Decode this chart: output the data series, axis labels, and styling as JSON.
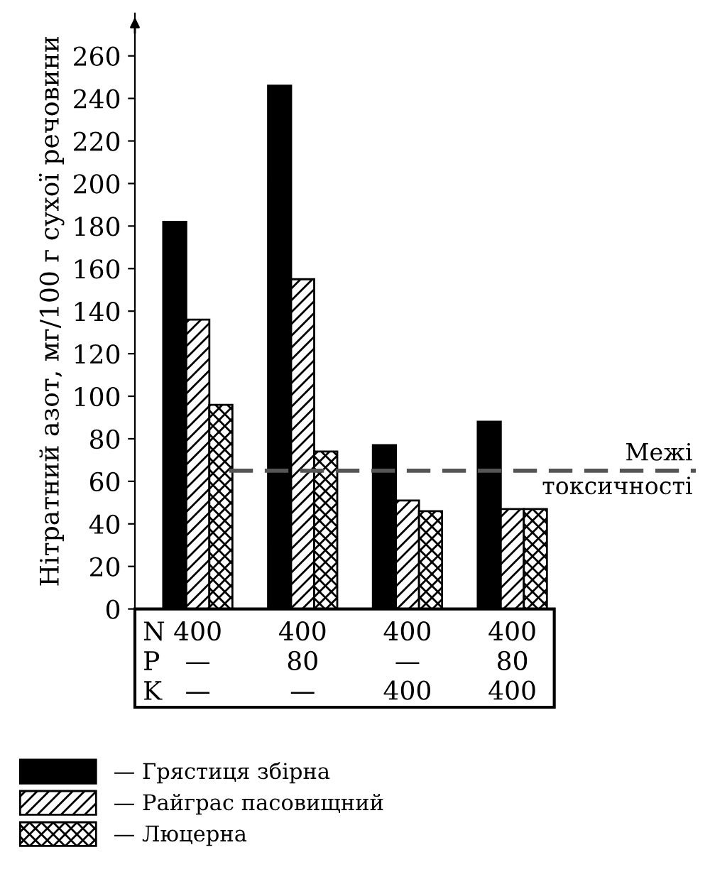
{
  "chart_data": {
    "type": "bar",
    "ylabel": "Нітратний азот, мг/100 г сухої речовини",
    "categories": [
      "400\n—\n—",
      "400\n80\n—",
      "400\n—\n400",
      "400\n80\n400"
    ],
    "series": [
      {
        "name": "— Грястиця збірна",
        "color": "#000000",
        "values": [
          182,
          246,
          77,
          88
        ]
      },
      {
        "name": "— Райграс пасовищний",
        "color": "#000000",
        "values": [
          136,
          155,
          51,
          47
        ]
      },
      {
        "name": "— Люцерна",
        "color": "#000000",
        "values": [
          96,
          74,
          46,
          47
        ]
      }
    ],
    "ylim": [
      0,
      280
    ],
    "yticks": [
      0,
      20,
      40,
      60,
      80,
      100,
      120,
      140,
      160,
      180,
      200,
      220,
      240,
      260
    ],
    "ref_lines": [
      {
        "axis": "y",
        "value": 65,
        "label": "Межі\nтоксичності",
        "line_style": "dashed",
        "color": "#555555"
      }
    ],
    "annotations": [
      "N",
      "P",
      "K"
    ],
    "grid": false,
    "legend": "bottom"
  }
}
